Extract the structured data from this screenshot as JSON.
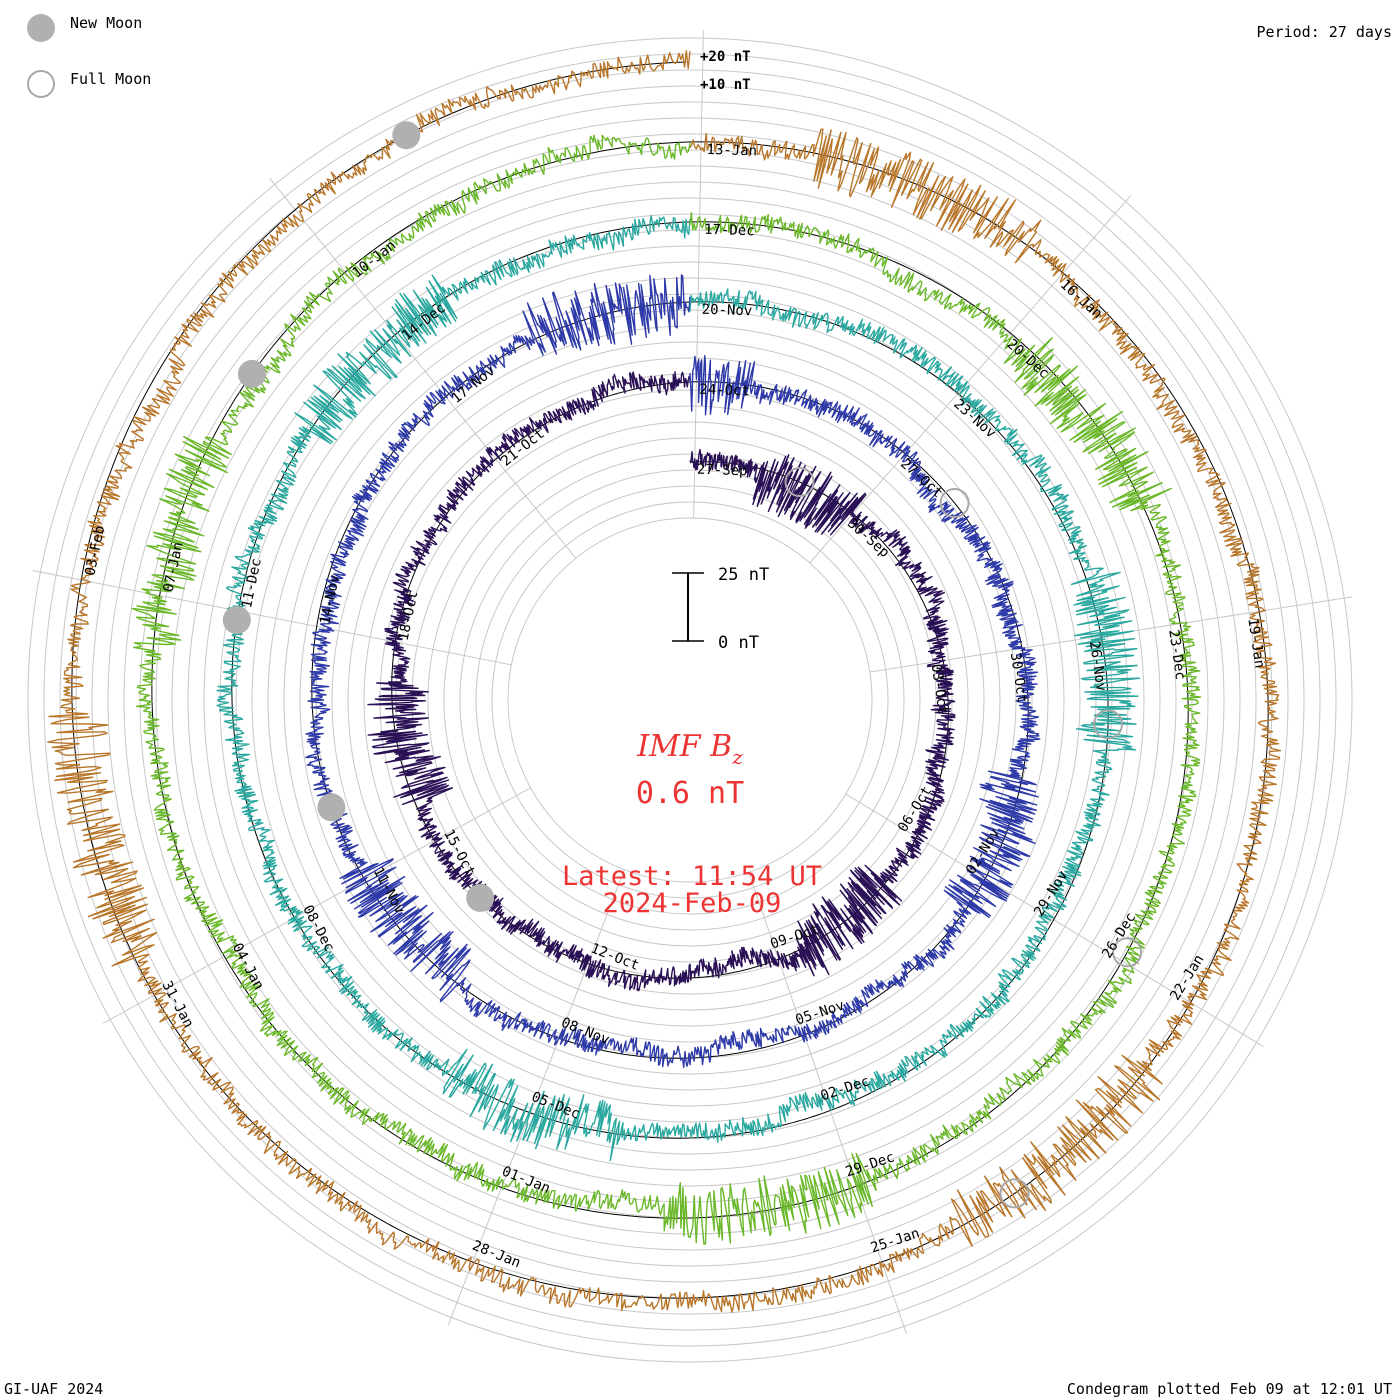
{
  "header": {
    "period_label": "Period: 27 days"
  },
  "legend": {
    "new_moon_label": "New Moon",
    "full_moon_label": "Full Moon",
    "new_moon_color": "#b0b0b0",
    "full_moon_color": "#a8a8a8"
  },
  "footer": {
    "credit": "GI-UAF 2024",
    "plotted": "Condegram plotted Feb 09 at 12:01 UT"
  },
  "center": {
    "title_main": "IMF B",
    "title_sub": "z",
    "current_value": "0.6 nT",
    "latest": "Latest: 11:54 UT",
    "date": "2024-Feb-09",
    "color": "#ee3333"
  },
  "chart_data": {
    "type": "line",
    "title": "IMF Bz",
    "unit": "nT",
    "period_days": 27,
    "rotation_start": [
      "27-Sep",
      "24-Oct",
      "20-Nov",
      "17-Dec",
      "13-Jan"
    ],
    "scale_labels": [
      "+20 nT",
      "+10 nT"
    ],
    "scale_bar": {
      "top": "25 nT",
      "bottom": "0 nT",
      "span_nT": 25
    },
    "series": [
      {
        "name": "27-Sep to 23-Oct",
        "color": "#2a1055",
        "date_ticks": [
          "27-Sep",
          "30-Sep",
          "03-Oct",
          "06-Oct",
          "09-Oct",
          "12-Oct",
          "15-Oct",
          "18-Oct",
          "21-Oct"
        ]
      },
      {
        "name": "24-Oct to 19-Nov",
        "color": "#2e3aa8",
        "date_ticks": [
          "24-Oct",
          "27-Oct",
          "30-Oct",
          "02-Nov",
          "05-Nov",
          "08-Nov",
          "11-Nov",
          "14-Nov",
          "17-Nov"
        ]
      },
      {
        "name": "20-Nov to 16-Dec",
        "color": "#2aa8a0",
        "date_ticks": [
          "20-Nov",
          "23-Nov",
          "26-Nov",
          "29-Nov",
          "02-Dec",
          "05-Dec",
          "08-Dec",
          "11-Dec",
          "14-Dec"
        ]
      },
      {
        "name": "17-Dec to 12-Jan",
        "color": "#6ab82a",
        "date_ticks": [
          "17-Dec",
          "20-Dec",
          "23-Dec",
          "26-Dec",
          "29-Dec",
          "01-Jan",
          "04-Jan",
          "07-Jan",
          "10-Jan"
        ]
      },
      {
        "name": "13-Jan to 09-Feb",
        "color": "#b8762a",
        "date_ticks": [
          "13-Jan",
          "16-Jan",
          "19-Jan",
          "22-Jan",
          "25-Jan",
          "28-Jan",
          "31-Jan",
          "03-Feb"
        ]
      }
    ],
    "moon_phases": {
      "new_moon_dates": [
        "14-Oct",
        "13-Nov",
        "12-Dec",
        "11-Jan",
        "09-Feb"
      ],
      "full_moon_dates": [
        "29-Sep",
        "28-Oct",
        "27-Nov",
        "26-Dec",
        "25-Jan"
      ]
    }
  }
}
